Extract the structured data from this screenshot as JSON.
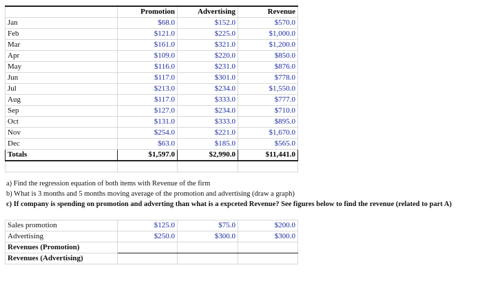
{
  "table": {
    "header": [
      "Promotion",
      "Advertising",
      "Revenue"
    ],
    "rows": [
      [
        "Jan",
        "$68.0",
        "$152.0",
        "$570.0"
      ],
      [
        "Feb",
        "$121.0",
        "$225.0",
        "$1,000.0"
      ],
      [
        "Mar",
        "$161.0",
        "$321.0",
        "$1,200.0"
      ],
      [
        "Apr",
        "$109.0",
        "$220.0",
        "$850.0"
      ],
      [
        "May",
        "$116.0",
        "$231.0",
        "$876.0"
      ],
      [
        "Jun",
        "$117.0",
        "$301.0",
        "$778.0"
      ],
      [
        "Jul",
        "$213.0",
        "$234.0",
        "$1,550.0"
      ],
      [
        "Aug",
        "$117.0",
        "$333.0",
        "$777.0"
      ],
      [
        "Sep",
        "$127.0",
        "$234.0",
        "$710.0"
      ],
      [
        "Oct",
        "$131.0",
        "$333.0",
        "$895.0"
      ],
      [
        "Nov",
        "$254.0",
        "$221.0",
        "$1,670.0"
      ],
      [
        "Dec",
        "$63.0",
        "$185.0",
        "$565.0"
      ]
    ],
    "totals": [
      "Totals",
      "$1,597.0",
      "$2,990.0",
      "$11,441.0"
    ]
  },
  "questions": [
    "a) Find the regression equation of both items with Revenue of the firm",
    "b) What is 3 months and 5 months moving average of the promotion and advertising (draw a graph)",
    "c) If company is spending on promotion and adverting than what is a expceted Revenue? See figures below to find the revenue  (related to part A)"
  ],
  "scenario_table": {
    "rows": [
      [
        "Sales promotion",
        "$125.0",
        "$75.0",
        "$200.0"
      ],
      [
        "Advertising",
        "$250.0",
        "$300.0",
        "$300.0"
      ]
    ],
    "result_rows": [
      "Revenues (Promotion)",
      "Revenues (Advertising)"
    ]
  }
}
